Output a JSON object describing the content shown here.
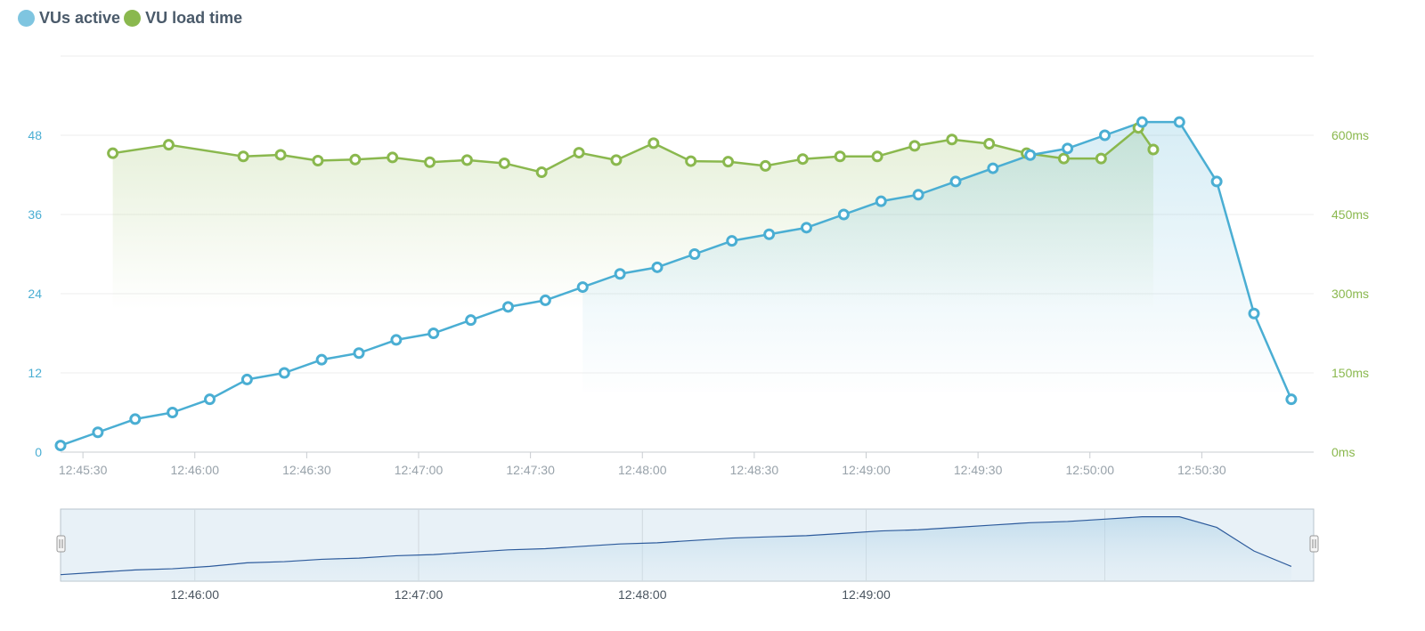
{
  "legend": {
    "vus_label": "VUs active",
    "load_label": "VU load time"
  },
  "colors": {
    "vus": "#4aaed3",
    "load": "#8ab84e",
    "vus_axis_text": "#4aaed3",
    "load_axis_text": "#8ab84e",
    "grid": "#eeeeee",
    "navigator_line": "#2d5b9c"
  },
  "chart_data": {
    "type": "line",
    "title": "",
    "xlabel": "",
    "x_range": [
      "12:45:24",
      "12:51:00"
    ],
    "x_ticks": [
      "12:45:30",
      "12:46:00",
      "12:46:30",
      "12:47:00",
      "12:47:30",
      "12:48:00",
      "12:48:30",
      "12:49:00",
      "12:49:30",
      "12:50:00",
      "12:50:30"
    ],
    "y_left": {
      "label": "VUs active",
      "ticks": [
        "0",
        "12",
        "24",
        "36",
        "48"
      ],
      "ylim": [
        0,
        60
      ]
    },
    "y_right": {
      "label": "VU load time",
      "ticks": [
        "0ms",
        "150ms",
        "300ms",
        "450ms",
        "600ms"
      ],
      "ylim": [
        0,
        750
      ]
    },
    "series": [
      {
        "name": "VUs active",
        "axis": "left",
        "x": [
          "12:45:24",
          "12:45:34",
          "12:45:44",
          "12:45:54",
          "12:46:04",
          "12:46:14",
          "12:46:24",
          "12:46:34",
          "12:46:44",
          "12:46:54",
          "12:47:04",
          "12:47:14",
          "12:47:24",
          "12:47:34",
          "12:47:44",
          "12:47:54",
          "12:48:04",
          "12:48:14",
          "12:48:24",
          "12:48:34",
          "12:48:44",
          "12:48:54",
          "12:49:04",
          "12:49:14",
          "12:49:24",
          "12:49:34",
          "12:49:44",
          "12:49:54",
          "12:50:04",
          "12:50:14",
          "12:50:24",
          "12:50:34",
          "12:50:44",
          "12:50:54"
        ],
        "values": [
          1,
          3,
          5,
          6,
          8,
          11,
          12,
          14,
          15,
          17,
          18,
          20,
          22,
          23,
          25,
          27,
          28,
          30,
          32,
          33,
          34,
          36,
          38,
          39,
          41,
          43,
          45,
          46,
          48,
          50,
          50,
          41,
          21,
          8
        ]
      },
      {
        "name": "VU load time",
        "axis": "right",
        "x": [
          "12:45:38",
          "12:45:53",
          "12:46:13",
          "12:46:23",
          "12:46:33",
          "12:46:43",
          "12:46:53",
          "12:47:03",
          "12:47:13",
          "12:47:23",
          "12:47:33",
          "12:47:43",
          "12:47:53",
          "12:48:03",
          "12:48:13",
          "12:48:23",
          "12:48:33",
          "12:48:43",
          "12:48:53",
          "12:49:03",
          "12:49:13",
          "12:49:23",
          "12:49:33",
          "12:49:43",
          "12:49:53",
          "12:50:03",
          "12:50:13",
          "12:50:17"
        ],
        "values": [
          566,
          582,
          560,
          563,
          552,
          554,
          558,
          549,
          553,
          547,
          530,
          567,
          553,
          585,
          551,
          550,
          542,
          555,
          560,
          560,
          580,
          592,
          584,
          566,
          556,
          556,
          614,
          573
        ]
      }
    ],
    "navigator": {
      "x_ticks": [
        "12:46:00",
        "12:47:00",
        "12:48:00",
        "12:49:00"
      ],
      "values": [
        1,
        3,
        5,
        6,
        8,
        11,
        12,
        14,
        15,
        17,
        18,
        20,
        22,
        23,
        25,
        27,
        28,
        30,
        32,
        33,
        34,
        36,
        38,
        39,
        41,
        43,
        45,
        46,
        48,
        50,
        50,
        41,
        21,
        8
      ]
    }
  }
}
